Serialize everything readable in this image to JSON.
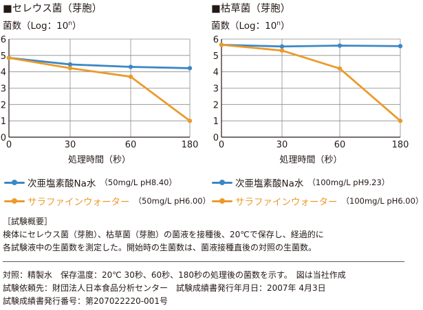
{
  "colors": {
    "blue": "#3c87c4",
    "orange": "#eb9a2a",
    "axis": "#231815",
    "grid": "#8a8a8a"
  },
  "charts": [
    {
      "title": "■セレウス菌（芽胞）",
      "ylabel": "菌数（Log：10",
      "ylabel_sup": "n",
      "ylabel_close": "）"
    },
    {
      "title": "■枯草菌（芽胞）",
      "ylabel": "菌数（Log：10",
      "ylabel_sup": "n",
      "ylabel_close": "）"
    }
  ],
  "chart_data": [
    {
      "type": "line",
      "title": "■セレウス菌（芽胞）",
      "xlabel": "処理時間（秒）",
      "ylabel": "菌数（Log：10n）",
      "categories": [
        "0",
        "30",
        "60",
        "180"
      ],
      "ylim": [
        0,
        6
      ],
      "yticks": [
        "0",
        "1",
        "2",
        "3",
        "4",
        "5",
        "6"
      ],
      "grid": true,
      "series": [
        {
          "name": "次亜塩素酸Na水",
          "values": [
            4.85,
            4.45,
            4.3,
            4.22
          ]
        },
        {
          "name": "サラファインウォーター",
          "values": [
            4.85,
            4.22,
            3.7,
            1.0
          ]
        }
      ]
    },
    {
      "type": "line",
      "title": "■枯草菌（芽胞）",
      "xlabel": "処理時間（秒）",
      "ylabel": "菌数（Log：10n）",
      "categories": [
        "0",
        "30",
        "60",
        "180"
      ],
      "ylim": [
        0,
        6
      ],
      "yticks": [
        "0",
        "1",
        "2",
        "3",
        "4",
        "5",
        "6"
      ],
      "grid": true,
      "series": [
        {
          "name": "次亜塩素酸Na水",
          "values": [
            5.65,
            5.55,
            5.6,
            5.57
          ]
        },
        {
          "name": "サラファインウォーター",
          "values": [
            5.65,
            5.3,
            4.2,
            1.0
          ]
        }
      ]
    }
  ],
  "legend": [
    {
      "blue": {
        "label": "次亜塩素酸Na水",
        "cond": "（50mg/L  pH8.40）"
      },
      "orange": {
        "label": "サラファインウォーター",
        "cond": "（50mg/L  pH6.00）"
      }
    },
    {
      "blue": {
        "label": "次亜塩素酸Na水",
        "cond": "（100mg/L  pH9.23）"
      },
      "orange": {
        "label": "サラファインウォーター",
        "cond": "（100mg/L  pH6.00）"
      }
    }
  ],
  "notes": {
    "heading": "［試験概要］",
    "body1": "検体にセレウス菌（芽胞）、枯草菌（芽胞）の菌液を接種後、20℃で保存し、経過的に",
    "body2": "各試験液中の生菌数を測定した。開始時の生菌数は、菌液接種直後の対照の生菌数。",
    "line1": "対照：精製水　保存温度：20℃  30秒、60秒、180秒の処理後の菌数を示す。　図は当社作成",
    "line2": "試験依頼先：財団法人日本食品分析センター　試験成績書発行年月日：2007年 4月3日",
    "line3": "試験成績書発行番号：第207022220-001号"
  }
}
